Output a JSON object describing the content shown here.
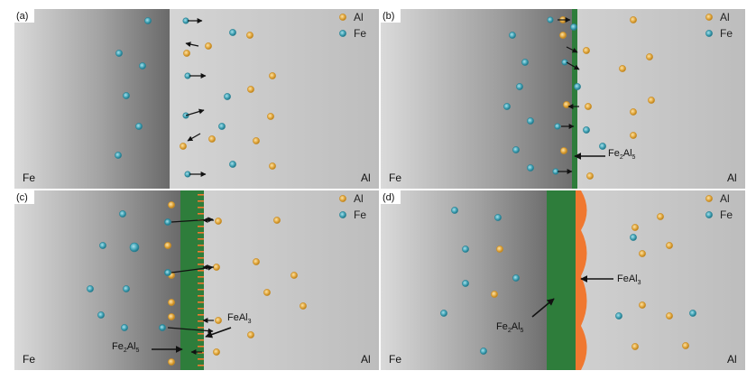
{
  "legend": {
    "al": "Al",
    "fe": "Fe"
  },
  "colors": {
    "al_atom": "#e0a53a",
    "fe_atom": "#3d9fb2",
    "fe2al5_layer": "#2e7d3b",
    "feal3_phase": "#f07830",
    "arrow": "#111111"
  },
  "panels": [
    {
      "tag": "(a)",
      "left_label": "Fe",
      "right_label": "Al",
      "layer": "none"
    },
    {
      "tag": "(b)",
      "left_label": "Fe",
      "right_label": "Al",
      "layer": "thin-fe2al5",
      "annotations": [
        {
          "base": "Fe",
          "sub1": "2",
          "mid": "Al",
          "sub2": "5"
        }
      ]
    },
    {
      "tag": "(c)",
      "left_label": "Fe",
      "right_label": "Al",
      "layer": "fe2al5-with-feal3-spikes",
      "annotations": [
        {
          "base": "FeAl",
          "sub1": "3",
          "mid": "",
          "sub2": ""
        },
        {
          "base": "Fe",
          "sub1": "2",
          "mid": "Al",
          "sub2": "5"
        }
      ]
    },
    {
      "tag": "(d)",
      "left_label": "Fe",
      "right_label": "Al",
      "layer": "thick-fe2al5-with-feal3-scallops",
      "annotations": [
        {
          "base": "FeAl",
          "sub1": "3",
          "mid": "",
          "sub2": ""
        },
        {
          "base": "Fe",
          "sub1": "2",
          "mid": "Al",
          "sub2": "5"
        }
      ]
    }
  ]
}
